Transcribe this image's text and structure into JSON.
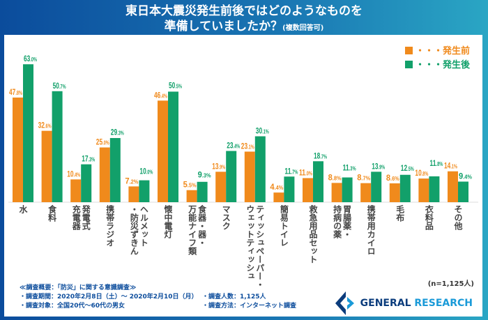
{
  "title": {
    "line1": "東日本大震災発生前後ではどのようなものを",
    "line2": "準備していましたか？",
    "note": "(複数回答可)"
  },
  "colors": {
    "before": "#f08a1c",
    "after": "#12a06a"
  },
  "chart_data": {
    "type": "bar",
    "title": "東日本大震災発生前後ではどのようなものを準備していましたか？(複数回答可)",
    "categories": [
      "水",
      "食料",
      "発電式\n充電器",
      "携帯ラジオ",
      "ヘルメット\n・防災ずきん",
      "懐中電灯",
      "食器・器・\n万能ナイフ類",
      "マスク",
      "ティッシュペーパー・\nウェットティッシュ",
      "簡易トイレ",
      "救急用品セット",
      "胃腸薬・\n持病の薬",
      "携帯用カイロ",
      "毛布",
      "衣料品",
      "その他"
    ],
    "series": [
      {
        "name": "・・・発生前",
        "values": [
          47.8,
          32.6,
          10.4,
          25.0,
          7.2,
          46.4,
          5.5,
          13.9,
          23.1,
          4.4,
          11.0,
          8.8,
          8.7,
          8.6,
          10.8,
          14.1
        ]
      },
      {
        "name": "・・・発生後",
        "values": [
          63.0,
          50.7,
          17.3,
          29.3,
          10.0,
          50.5,
          9.3,
          23.4,
          30.1,
          11.7,
          18.7,
          11.3,
          13.9,
          12.5,
          11.8,
          9.4
        ]
      }
    ],
    "unit": "%",
    "ylim": [
      0,
      70
    ],
    "grid": false,
    "legend": "top-right"
  },
  "sample": "(n=1,125人)",
  "notes": {
    "heading": "≪調査概要：「防災」に関する意識調査≫",
    "period": "・調査期間：2020年2月8日（土）～ 2020年2月10日（月）",
    "count": "・調査人数：1,125人",
    "target": "・調査対象：全国20代～60代の男女",
    "method": "・調査方法：インターネット調査"
  },
  "logo": {
    "text1": "GENERAL",
    "text2": "RESEARCH"
  }
}
